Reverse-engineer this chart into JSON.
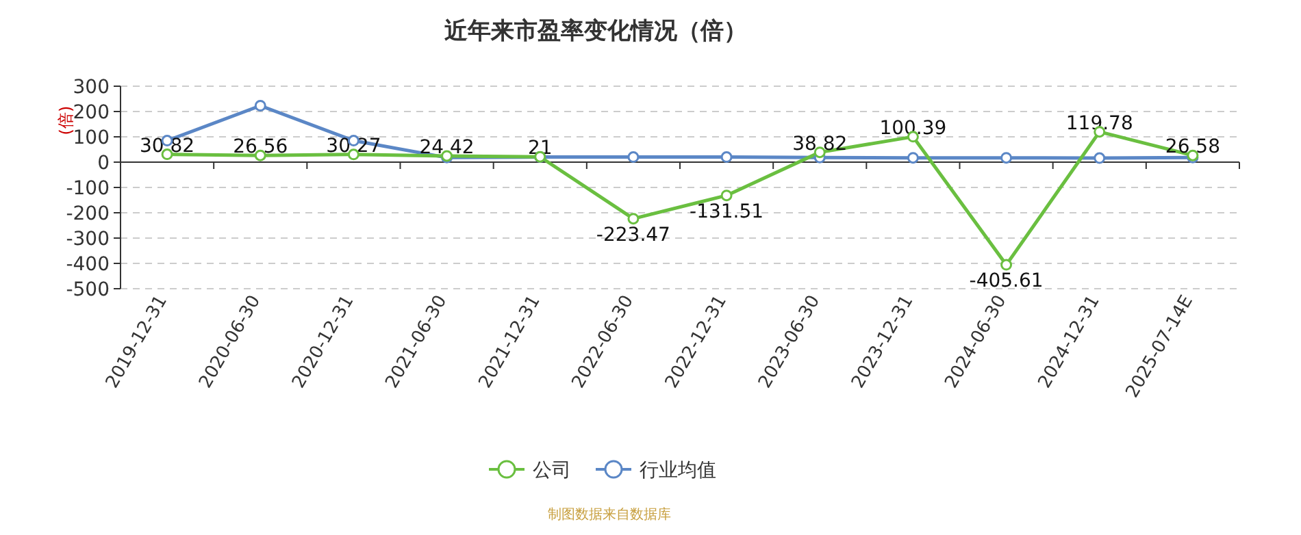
{
  "chart_data": {
    "type": "line",
    "title": "近年来市盈率变化情况（倍）",
    "ylabel": "(倍)",
    "categories": [
      "2019-12-31",
      "2020-06-30",
      "2020-12-31",
      "2021-06-30",
      "2021-12-31",
      "2022-06-30",
      "2022-12-31",
      "2023-06-30",
      "2023-12-31",
      "2024-06-30",
      "2024-12-31",
      "2025-07-14E"
    ],
    "series": [
      {
        "name": "公司",
        "color": "#6abf40",
        "values": [
          30.82,
          26.56,
          30.27,
          24.42,
          21,
          -223.47,
          -131.51,
          38.82,
          100.39,
          -405.61,
          119.78,
          26.58
        ],
        "data_labels": true
      },
      {
        "name": "行业均值",
        "color": "#5b87c6",
        "values": [
          85,
          223,
          85,
          18,
          20,
          20,
          20,
          18,
          17,
          17,
          16,
          18
        ]
      }
    ],
    "ylim": [
      -500,
      300
    ],
    "yticks": [
      -500,
      -400,
      -300,
      -200,
      -100,
      0,
      100,
      200,
      300
    ],
    "grid": "y",
    "legend": "bottom",
    "marker": "circle",
    "line_style": "solid",
    "annotations": [
      "制图数据来自数据库"
    ]
  }
}
